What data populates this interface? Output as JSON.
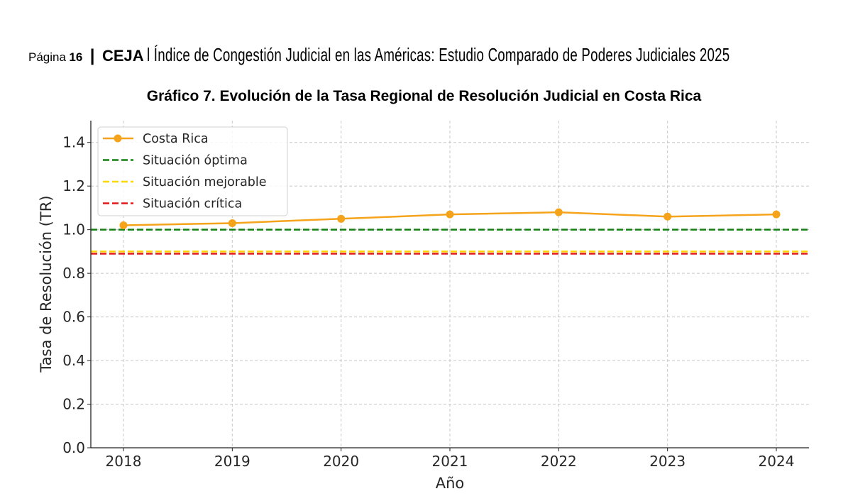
{
  "header": {
    "page_label": "Página",
    "page_number": "16",
    "separator": "|",
    "org": "CEJA",
    "doc_title": "l Índice de Congestión Judicial en las Américas: Estudio Comparado de Poderes Judiciales 2025"
  },
  "chart_data": {
    "type": "line",
    "title": "Gráfico 7. Evolución de la Tasa Regional de Resolución Judicial en Costa Rica",
    "xlabel": "Año",
    "ylabel": "Tasa de Resolución (TR)",
    "x": [
      2018,
      2019,
      2020,
      2021,
      2022,
      2023,
      2024
    ],
    "xlim": [
      2017.7,
      2024.3
    ],
    "ylim": [
      0,
      1.5
    ],
    "yticks": [
      0.0,
      0.2,
      0.4,
      0.6,
      0.8,
      1.0,
      1.2,
      1.4
    ],
    "grid": true,
    "legend_placement": "top-left",
    "series": [
      {
        "name": "Costa Rica",
        "values": [
          1.02,
          1.03,
          1.05,
          1.07,
          1.08,
          1.06,
          1.07
        ],
        "color": "#f5a31a",
        "style": "solid-marker"
      }
    ],
    "reference_lines": [
      {
        "name": "Situación óptima",
        "value": 1.0,
        "color": "#118011"
      },
      {
        "name": "Situación mejorable",
        "value": 0.9,
        "color": "#ffd700"
      },
      {
        "name": "Situación crítica",
        "value": 0.89,
        "color": "#e31a1c"
      }
    ]
  }
}
